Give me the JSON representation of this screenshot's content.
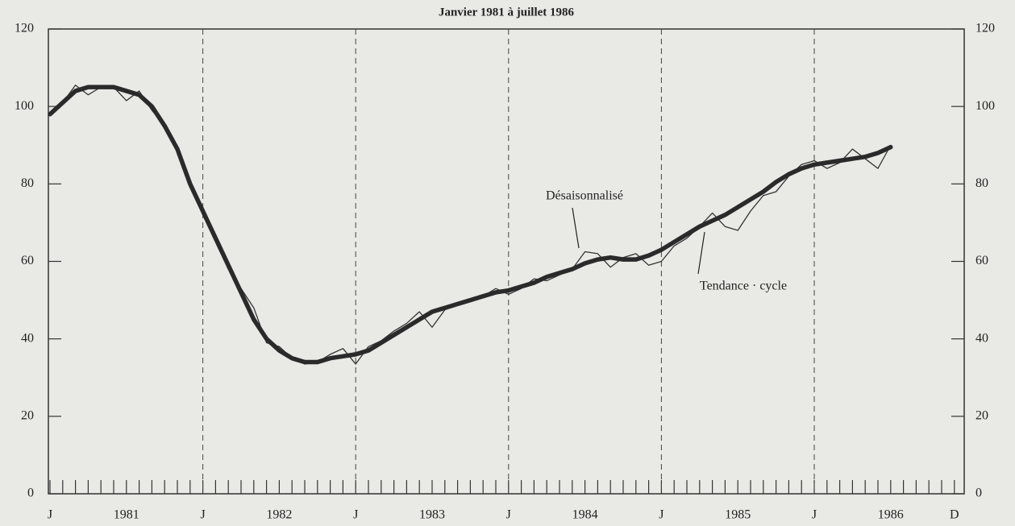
{
  "chart_data": {
    "type": "line",
    "title": "Janvier 1981 à juillet 1986",
    "categories": [
      "J",
      null,
      null,
      null,
      null,
      null,
      "1981",
      null,
      null,
      null,
      null,
      null,
      "J",
      null,
      null,
      null,
      null,
      null,
      "1982",
      null,
      null,
      null,
      null,
      null,
      "J",
      null,
      null,
      null,
      null,
      null,
      "1983",
      null,
      null,
      null,
      null,
      null,
      "J",
      null,
      null,
      null,
      null,
      null,
      "1984",
      null,
      null,
      null,
      null,
      null,
      "J",
      null,
      null,
      null,
      null,
      null,
      "1985",
      null,
      null,
      null,
      null,
      null,
      "J",
      null,
      null,
      null,
      null,
      null,
      "1986",
      null,
      null,
      null,
      null,
      "D"
    ],
    "series": [
      {
        "name": "Désaisonnalisé",
        "color": "#333333",
        "values": [
          98,
          101,
          105.5,
          103,
          105,
          105,
          101.5,
          104,
          99,
          95,
          89,
          80,
          72,
          65,
          58,
          53,
          48,
          39,
          38,
          35,
          33.5,
          34,
          36,
          37.5,
          33.5,
          38,
          39.5,
          42,
          44,
          47,
          43,
          47.5,
          49,
          50,
          51,
          53,
          51.5,
          53,
          55.5,
          55,
          56.5,
          58,
          62.5,
          62,
          58.5,
          61,
          62,
          59,
          60,
          64,
          66,
          69,
          72.5,
          69,
          68,
          73,
          77,
          78,
          82,
          85,
          86,
          84,
          85.5,
          89,
          86.5,
          84,
          90,
          null,
          null,
          null,
          null,
          null
        ]
      },
      {
        "name": "Tendance · cycle",
        "color": "#2a2a2a",
        "values": [
          98,
          101,
          104,
          105,
          105,
          105,
          104,
          103,
          100,
          95,
          89,
          80,
          73,
          66,
          59,
          52,
          45,
          40,
          37,
          35,
          34,
          34,
          35,
          35.5,
          36,
          37,
          39,
          41,
          43,
          45,
          47,
          48,
          49,
          50,
          51,
          52,
          52.5,
          53.5,
          54.5,
          56,
          57,
          58,
          59.5,
          60.5,
          61,
          60.5,
          60.5,
          61.5,
          63,
          65,
          67,
          69,
          70.5,
          72,
          74,
          76,
          78,
          80.5,
          82.5,
          84,
          85,
          85.5,
          86,
          86.5,
          87,
          88,
          89.5,
          null,
          null,
          null,
          null,
          null
        ]
      }
    ],
    "ylim": [
      0,
      120
    ],
    "yticks": [
      0,
      20,
      40,
      60,
      80,
      100,
      120
    ]
  }
}
